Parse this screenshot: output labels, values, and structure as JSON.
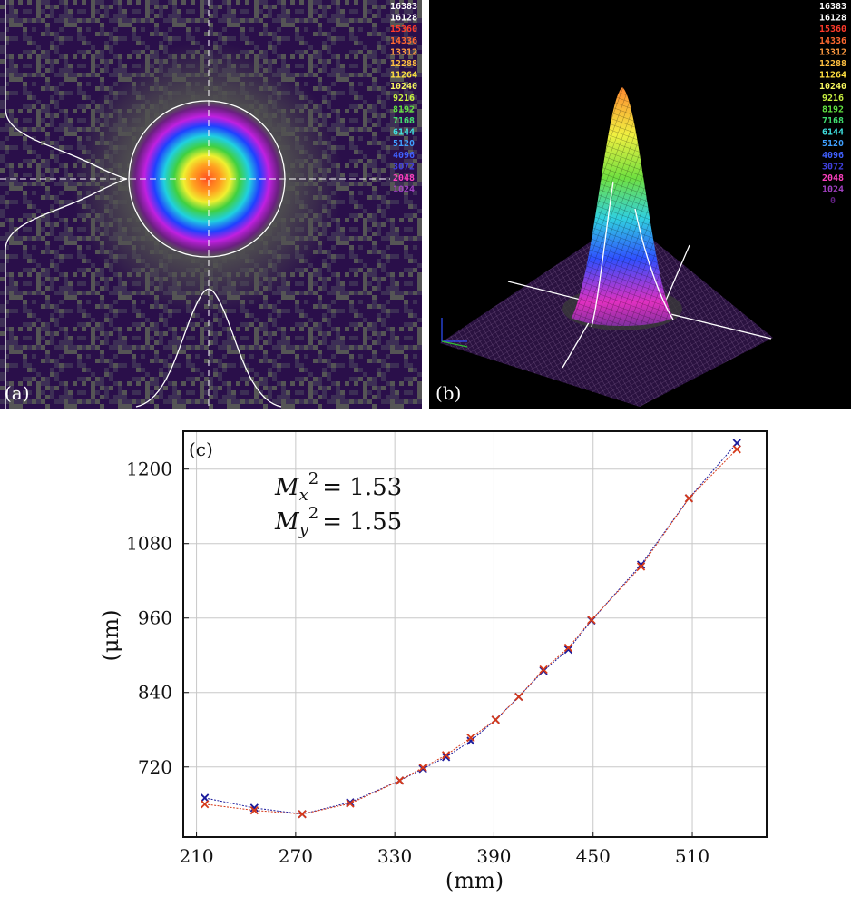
{
  "panels": [
    {
      "label": "(a)",
      "colorbar": [
        16383,
        16128,
        15360,
        14336,
        13312,
        12288,
        11264,
        10240,
        9216,
        8192,
        7168,
        6144,
        5120,
        4096,
        3072,
        2048,
        1024
      ],
      "colorbar_colors": [
        "#ffffff",
        "#ffffff",
        "#ff3a2a",
        "#ff6a30",
        "#ff9a40",
        "#ffc040",
        "#ffe040",
        "#f8f860",
        "#c8f040",
        "#60e040",
        "#40e070",
        "#40e0e0",
        "#40a0ff",
        "#4060ff",
        "#4040e0",
        "#ff40c0",
        "#a040c0"
      ]
    },
    {
      "label": "(b)",
      "colorbar": [
        16383,
        16128,
        15360,
        14336,
        13312,
        12288,
        11264,
        10240,
        9216,
        8192,
        7168,
        6144,
        5120,
        4096,
        3072,
        2048,
        1024,
        0
      ],
      "colorbar_colors": [
        "#ffffff",
        "#ffffff",
        "#ff3a2a",
        "#ff6a30",
        "#ff9a40",
        "#ffc040",
        "#ffe040",
        "#f8f860",
        "#c8f040",
        "#60e040",
        "#40e070",
        "#40e0e0",
        "#40a0ff",
        "#4060ff",
        "#4040e0",
        "#ff40c0",
        "#a040c0",
        "#602080"
      ]
    }
  ],
  "chart_data": {
    "type": "scatter",
    "label": "(c)",
    "annotations": [
      {
        "symbol": "M",
        "sub": "x",
        "sup": "2",
        "eq": "= 1.53"
      },
      {
        "symbol": "M",
        "sub": "y",
        "sup": "2",
        "eq": "= 1.55"
      }
    ],
    "x_label": "(mm)",
    "y_label": "(μm)",
    "x": [
      215,
      245,
      274,
      303,
      333,
      347,
      361,
      376,
      391,
      405,
      420,
      435,
      449,
      479,
      508,
      537
    ],
    "series": [
      {
        "color": "#1a1a9c",
        "values": [
          670,
          654,
          644,
          663,
          698,
          717,
          736,
          762,
          796,
          833,
          875,
          909,
          956,
          1046,
          1153,
          1242
        ]
      },
      {
        "color": "#d63a1a",
        "values": [
          660,
          650,
          644,
          661,
          698,
          719,
          739,
          767,
          796,
          833,
          877,
          912,
          957,
          1043,
          1153,
          1232
        ]
      }
    ],
    "xlim": [
      202,
      555
    ],
    "ylim": [
      607,
      1261
    ],
    "xticks": [
      210,
      270,
      330,
      390,
      450,
      510
    ],
    "yticks": [
      720,
      840,
      960,
      1080,
      1200
    ],
    "grid": true
  }
}
